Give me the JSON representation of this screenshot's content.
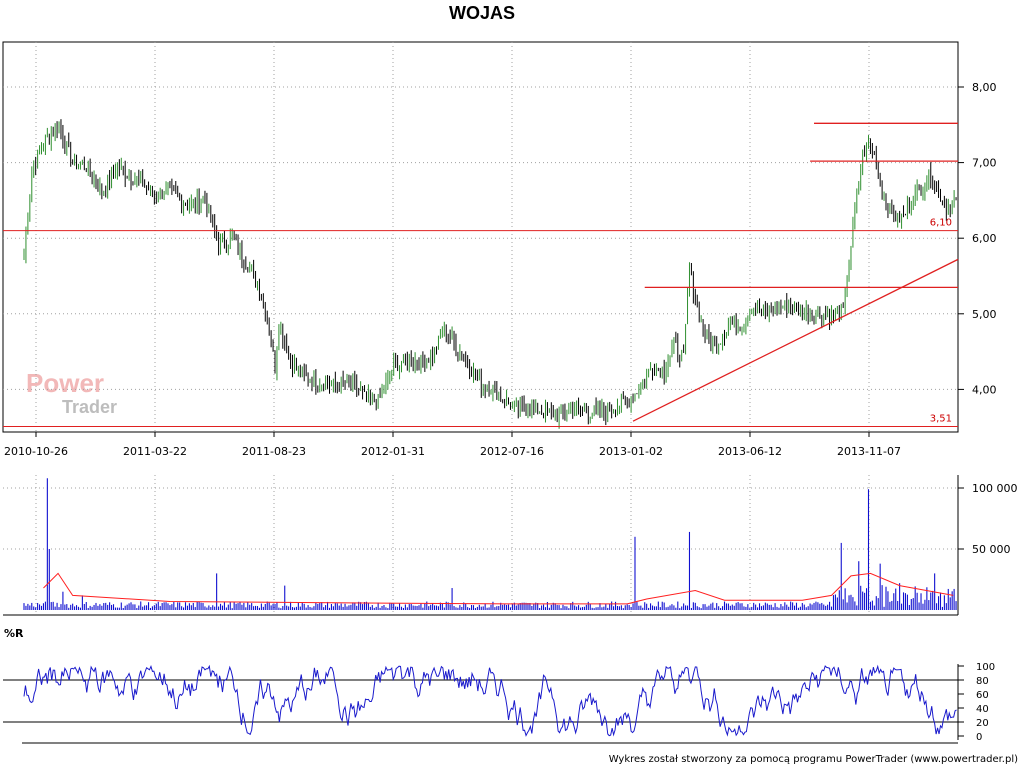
{
  "chart_data": [
    {
      "type": "candlestick",
      "title": "WOJAS",
      "x_tick_labels": [
        "2010-10-26",
        "2011-03-22",
        "2011-08-23",
        "2012-01-31",
        "2012-07-16",
        "2013-01-02",
        "2013-06-12",
        "2013-11-07"
      ],
      "y_ticks": [
        4.0,
        5.0,
        6.0,
        7.0,
        8.0
      ],
      "y_tick_labels": [
        "4,00",
        "5,00",
        "6,00",
        "7,00",
        "8,00"
      ],
      "ylim": [
        3.4,
        8.7
      ],
      "grid": true,
      "series": [
        {
          "values": [
            [
              0,
              5.75
            ],
            [
              8,
              6.9
            ],
            [
              20,
              7.25
            ],
            [
              35,
              7.5
            ],
            [
              50,
              7.0
            ],
            [
              65,
              6.95
            ],
            [
              80,
              6.6
            ],
            [
              95,
              6.95
            ],
            [
              105,
              6.85
            ],
            [
              120,
              6.75
            ],
            [
              135,
              6.55
            ],
            [
              148,
              6.65
            ],
            [
              160,
              6.5
            ],
            [
              172,
              6.45
            ],
            [
              185,
              6.55
            ],
            [
              200,
              5.9
            ],
            [
              215,
              6.0
            ],
            [
              225,
              5.75
            ],
            [
              240,
              5.4
            ],
            [
              250,
              4.95
            ],
            [
              258,
              4.3
            ],
            [
              262,
              4.9
            ],
            [
              275,
              4.35
            ],
            [
              290,
              4.15
            ],
            [
              305,
              4.1
            ],
            [
              320,
              4.05
            ],
            [
              335,
              4.1
            ],
            [
              350,
              3.9
            ],
            [
              365,
              3.85
            ],
            [
              380,
              4.3
            ],
            [
              395,
              4.4
            ],
            [
              410,
              4.35
            ],
            [
              420,
              4.45
            ],
            [
              432,
              4.8
            ],
            [
              445,
              4.55
            ],
            [
              458,
              4.3
            ],
            [
              470,
              4.05
            ],
            [
              482,
              4.0
            ],
            [
              495,
              3.85
            ],
            [
              505,
              3.75
            ],
            [
              520,
              3.75
            ],
            [
              535,
              3.7
            ],
            [
              550,
              3.65
            ],
            [
              565,
              3.75
            ],
            [
              580,
              3.7
            ],
            [
              595,
              3.7
            ],
            [
              610,
              3.8
            ],
            [
              620,
              3.85
            ],
            [
              632,
              4.0
            ],
            [
              645,
              4.3
            ],
            [
              658,
              4.25
            ],
            [
              668,
              4.6
            ],
            [
              678,
              4.4
            ],
            [
              684,
              5.6
            ],
            [
              690,
              5.2
            ],
            [
              700,
              4.7
            ],
            [
              712,
              4.6
            ],
            [
              725,
              4.85
            ],
            [
              738,
              4.85
            ],
            [
              748,
              5.1
            ],
            [
              760,
              5.0
            ],
            [
              772,
              5.1
            ],
            [
              785,
              5.1
            ],
            [
              795,
              5.05
            ],
            [
              808,
              5.0
            ],
            [
              820,
              5.0
            ],
            [
              832,
              4.95
            ],
            [
              842,
              5.05
            ],
            [
              850,
              5.9
            ],
            [
              855,
              6.5
            ],
            [
              862,
              7.1
            ],
            [
              868,
              7.25
            ],
            [
              875,
              7.05
            ],
            [
              882,
              6.6
            ],
            [
              890,
              6.35
            ],
            [
              898,
              6.25
            ],
            [
              905,
              6.3
            ],
            [
              912,
              6.5
            ],
            [
              918,
              6.6
            ],
            [
              925,
              6.7
            ],
            [
              932,
              6.85
            ],
            [
              940,
              6.6
            ],
            [
              948,
              6.4
            ],
            [
              955,
              6.5
            ]
          ]
        }
      ],
      "annotations": [
        {
          "type": "hline",
          "y": 6.1,
          "label": "6,10"
        },
        {
          "type": "hline",
          "y": 3.51,
          "label": "3,51"
        },
        {
          "type": "segment",
          "x": [
            812,
            960
          ],
          "y": [
            7.52,
            7.52
          ]
        },
        {
          "type": "segment",
          "x": [
            808,
            960
          ],
          "y": [
            7.02,
            7.02
          ]
        },
        {
          "type": "segment",
          "x": [
            638,
            960
          ],
          "y": [
            5.35,
            5.35
          ]
        },
        {
          "type": "trendline",
          "x": [
            626,
            960
          ],
          "y": [
            3.58,
            5.72
          ]
        }
      ]
    },
    {
      "type": "bar",
      "y_ticks": [
        50000,
        100000
      ],
      "y_tick_labels": [
        "50 000",
        "100 000"
      ],
      "ylim": [
        0,
        110000
      ],
      "grid": true,
      "series": [
        {
          "peaks": [
            [
              24,
              108000
            ],
            [
              26,
              50000
            ],
            [
              40,
              15000
            ],
            [
              60,
              12000
            ],
            [
              198,
              30000
            ],
            [
              268,
              20000
            ],
            [
              440,
              18000
            ],
            [
              628,
              60000
            ],
            [
              684,
              64000
            ],
            [
              840,
              55000
            ],
            [
              858,
              40000
            ],
            [
              868,
              99000
            ],
            [
              880,
              38000
            ],
            [
              900,
              22000
            ],
            [
              936,
              30000
            ]
          ]
        },
        {
          "moving_average": [
            [
              20,
              18000
            ],
            [
              35,
              30000
            ],
            [
              50,
              12000
            ],
            [
              150,
              7000
            ],
            [
              300,
              6000
            ],
            [
              500,
              5000
            ],
            [
              620,
              5000
            ],
            [
              640,
              9000
            ],
            [
              690,
              16000
            ],
            [
              720,
              8000
            ],
            [
              800,
              8000
            ],
            [
              830,
              12000
            ],
            [
              850,
              28000
            ],
            [
              870,
              30000
            ],
            [
              900,
              20000
            ],
            [
              955,
              12000
            ]
          ]
        }
      ]
    },
    {
      "type": "line",
      "title": "%R",
      "y_ticks": [
        0,
        20,
        40,
        60,
        80,
        100
      ],
      "y_tick_labels": [
        "0",
        "20",
        "40",
        "60",
        "80",
        "100"
      ],
      "ylim": [
        0,
        100
      ],
      "grid": true,
      "reference_lines": [
        20,
        80
      ]
    }
  ],
  "footer": {
    "credit": "Wykres został stworzony za pomocą programu PowerTrader (www.powertrader.pl)"
  },
  "logo": {
    "line1": "Power",
    "line2": "Trader"
  },
  "colors": {
    "candle": "#000000",
    "candle_up": "#2f8f2f",
    "levels": "#e02020",
    "volume": "#1010d0",
    "volume_ma": "#ff2020",
    "williams": "#1a1acc",
    "grid": "#a0a0a0"
  }
}
